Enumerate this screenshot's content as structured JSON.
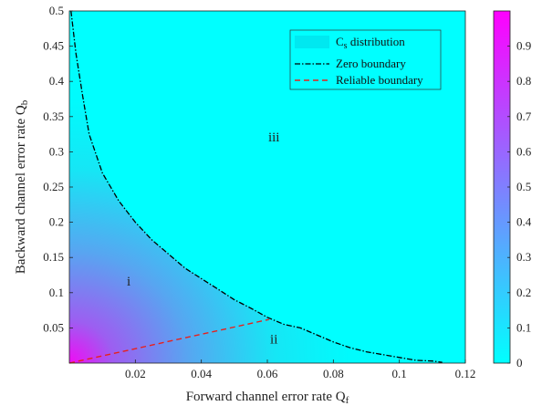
{
  "chart_data": {
    "type": "heatmap",
    "xlabel": "Forward channel error rate Q",
    "xlabel_sub": "f",
    "ylabel": "Backward channel error rate Q",
    "ylabel_sub": "b",
    "xlim": [
      0,
      0.12
    ],
    "ylim": [
      0,
      0.5
    ],
    "x_ticks": [
      "0.02",
      "0.04",
      "0.06",
      "0.08",
      "0.1",
      "0.12"
    ],
    "y_ticks": [
      "0.05",
      "0.1",
      "0.15",
      "0.2",
      "0.25",
      "0.3",
      "0.35",
      "0.4",
      "0.45",
      "0.5"
    ],
    "colorbar": {
      "range": [
        0,
        1
      ],
      "ticks": [
        "0",
        "0.1",
        "0.2",
        "0.3",
        "0.4",
        "0.5",
        "0.6",
        "0.7",
        "0.8",
        "0.9"
      ],
      "low_color": "#00ffff",
      "high_color": "#ff00ff"
    },
    "legend": {
      "placement": "top-right",
      "entries": [
        {
          "label_main": "C",
          "label_sub": "s",
          "label_tail": " distribution",
          "style": "patch",
          "color": "#00e8f0"
        },
        {
          "label": "Zero boundary",
          "style": "dash-dot",
          "color": "#000000"
        },
        {
          "label": "Reliable boundary",
          "style": "dashed",
          "color": "#e8201c"
        }
      ]
    },
    "zero_boundary": {
      "x": [
        0.0005,
        0.002,
        0.004,
        0.006,
        0.01,
        0.015,
        0.02,
        0.025,
        0.03,
        0.035,
        0.04,
        0.045,
        0.05,
        0.055,
        0.06,
        0.065,
        0.07,
        0.075,
        0.08,
        0.085,
        0.09,
        0.095,
        0.1,
        0.105,
        0.11,
        0.113
      ],
      "y": [
        0.5,
        0.44,
        0.38,
        0.325,
        0.27,
        0.23,
        0.2,
        0.175,
        0.155,
        0.135,
        0.12,
        0.105,
        0.09,
        0.078,
        0.065,
        0.055,
        0.05,
        0.04,
        0.03,
        0.022,
        0.016,
        0.012,
        0.008,
        0.004,
        0.003,
        0.001
      ]
    },
    "reliable_boundary": {
      "x": [
        0.0,
        0.0605
      ],
      "y": [
        0.0,
        0.062
      ]
    },
    "annotations": [
      {
        "text": "i",
        "x": 0.018,
        "y": 0.11
      },
      {
        "text": "ii",
        "x": 0.062,
        "y": 0.028
      },
      {
        "text": "iii",
        "x": 0.062,
        "y": 0.315
      }
    ]
  }
}
